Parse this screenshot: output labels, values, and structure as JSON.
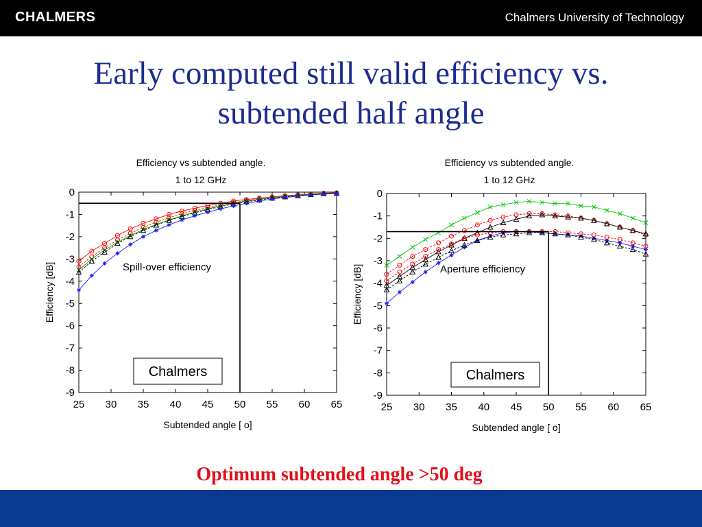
{
  "header": {
    "logo_text": "CHALMERS",
    "university": "Chalmers University of Technology"
  },
  "slide": {
    "title_line1": "Early computed still valid efficiency vs.",
    "title_line2": "subtended half angle",
    "conclusion": "Optimum subtended angle >50 deg",
    "conclusion_color": "#e0101a",
    "title_color": "#1c2c8f",
    "footer_color": "#0b3a91"
  },
  "chart_data": [
    {
      "type": "line",
      "title": "Efficiency vs subtended angle.",
      "subtitle": "1 to 12 GHz",
      "xlabel": "Subtended angle [ o]",
      "ylabel": "Efficiency [dB]",
      "annotation": "Spill-over efficiency",
      "watermark": "Chalmers",
      "xlim": [
        25,
        65
      ],
      "ylim": [
        -9,
        0
      ],
      "xticks": [
        25,
        30,
        35,
        40,
        45,
        50,
        55,
        60,
        65
      ],
      "yticks": [
        0,
        -1,
        -2,
        -3,
        -4,
        -5,
        -6,
        -7,
        -8,
        -9
      ],
      "x": [
        25,
        27,
        29,
        31,
        33,
        35,
        37,
        39,
        41,
        43,
        45,
        47,
        49,
        51,
        53,
        55,
        57,
        59,
        61,
        63,
        65
      ],
      "reference_lines": {
        "hline_y": -0.5,
        "vline_x": 50
      },
      "series": [
        {
          "color": "#ff0000",
          "marker": "circle",
          "values": [
            -3.1,
            -2.65,
            -2.3,
            -1.95,
            -1.65,
            -1.4,
            -1.2,
            -1.0,
            -0.85,
            -0.72,
            -0.6,
            -0.5,
            -0.4,
            -0.33,
            -0.27,
            -0.21,
            -0.16,
            -0.12,
            -0.08,
            -0.05,
            -0.03
          ]
        },
        {
          "color": "#ff0000",
          "marker": "circle",
          "values": [
            -3.35,
            -2.9,
            -2.5,
            -2.15,
            -1.85,
            -1.58,
            -1.35,
            -1.15,
            -0.97,
            -0.82,
            -0.69,
            -0.57,
            -0.47,
            -0.38,
            -0.3,
            -0.24,
            -0.18,
            -0.13,
            -0.09,
            -0.06,
            -0.04
          ]
        },
        {
          "color": "#00a000",
          "marker": "cross",
          "values": [
            -3.5,
            -3.0,
            -2.6,
            -2.25,
            -1.95,
            -1.68,
            -1.45,
            -1.25,
            -1.07,
            -0.9,
            -0.75,
            -0.62,
            -0.5,
            -0.4,
            -0.32,
            -0.25,
            -0.19,
            -0.14,
            -0.1,
            -0.07,
            -0.05
          ]
        },
        {
          "color": "#000000",
          "marker": "triangle",
          "values": [
            -3.6,
            -3.1,
            -2.7,
            -2.3,
            -2.0,
            -1.72,
            -1.48,
            -1.27,
            -1.09,
            -0.93,
            -0.78,
            -0.65,
            -0.53,
            -0.43,
            -0.35,
            -0.27,
            -0.21,
            -0.16,
            -0.11,
            -0.07,
            -0.05
          ]
        },
        {
          "color": "#1a1aff",
          "marker": "star",
          "values": [
            -4.4,
            -3.75,
            -3.2,
            -2.75,
            -2.35,
            -2.0,
            -1.72,
            -1.47,
            -1.25,
            -1.06,
            -0.9,
            -0.75,
            -0.62,
            -0.5,
            -0.4,
            -0.31,
            -0.24,
            -0.18,
            -0.13,
            -0.09,
            -0.06
          ]
        }
      ]
    },
    {
      "type": "line",
      "title": "Efficiency vs subtended angle.",
      "subtitle": "1 to 12 GHz",
      "xlabel": "Subtended angle [ o]",
      "ylabel": "Efficiency [dB]",
      "annotation": "Aperture efficiency",
      "watermark": "Chalmers",
      "xlim": [
        25,
        65
      ],
      "ylim": [
        -9,
        0
      ],
      "xticks": [
        25,
        30,
        35,
        40,
        45,
        50,
        55,
        60,
        65
      ],
      "yticks": [
        0,
        -1,
        -2,
        -3,
        -4,
        -5,
        -6,
        -7,
        -8,
        -9
      ],
      "x": [
        25,
        27,
        29,
        31,
        33,
        35,
        37,
        39,
        41,
        43,
        45,
        47,
        49,
        51,
        53,
        55,
        57,
        59,
        61,
        63,
        65
      ],
      "reference_lines": {
        "hline_y": -1.7,
        "vline_x": 50
      },
      "series": [
        {
          "color": "#00c800",
          "marker": "cross",
          "values": [
            -3.2,
            -2.8,
            -2.4,
            -2.05,
            -1.75,
            -1.4,
            -1.1,
            -0.85,
            -0.6,
            -0.5,
            -0.4,
            -0.35,
            -0.4,
            -0.45,
            -0.45,
            -0.55,
            -0.6,
            -0.75,
            -0.9,
            -1.1,
            -1.3
          ]
        },
        {
          "color": "#ff0000",
          "marker": "circle",
          "values": [
            -3.6,
            -3.2,
            -2.8,
            -2.5,
            -2.2,
            -1.9,
            -1.65,
            -1.4,
            -1.2,
            -1.05,
            -0.95,
            -0.9,
            -0.9,
            -0.95,
            -1.0,
            -1.1,
            -1.2,
            -1.35,
            -1.5,
            -1.65,
            -1.85
          ]
        },
        {
          "color": "#000000",
          "marker": "triangle",
          "values": [
            -4.1,
            -3.7,
            -3.3,
            -2.95,
            -2.6,
            -2.3,
            -2.0,
            -1.75,
            -1.5,
            -1.3,
            -1.15,
            -1.0,
            -0.95,
            -1.0,
            -1.05,
            -1.1,
            -1.2,
            -1.35,
            -1.5,
            -1.65,
            -1.8
          ]
        },
        {
          "color": "#ff0000",
          "marker": "circle",
          "values": [
            -3.9,
            -3.5,
            -3.15,
            -2.8,
            -2.5,
            -2.25,
            -2.0,
            -1.85,
            -1.75,
            -1.7,
            -1.7,
            -1.7,
            -1.7,
            -1.7,
            -1.75,
            -1.8,
            -1.85,
            -1.95,
            -2.05,
            -2.2,
            -2.35
          ]
        },
        {
          "color": "#1a1aff",
          "marker": "star",
          "values": [
            -4.9,
            -4.4,
            -3.95,
            -3.5,
            -3.1,
            -2.75,
            -2.4,
            -2.1,
            -1.9,
            -1.75,
            -1.7,
            -1.7,
            -1.75,
            -1.8,
            -1.85,
            -1.9,
            -2.0,
            -2.1,
            -2.2,
            -2.35,
            -2.5
          ]
        },
        {
          "color": "#000000",
          "marker": "triangle",
          "values": [
            -4.3,
            -3.9,
            -3.5,
            -3.15,
            -2.85,
            -2.55,
            -2.3,
            -2.1,
            -1.95,
            -1.85,
            -1.8,
            -1.75,
            -1.75,
            -1.8,
            -1.85,
            -1.95,
            -2.05,
            -2.2,
            -2.35,
            -2.5,
            -2.7
          ]
        }
      ]
    }
  ]
}
